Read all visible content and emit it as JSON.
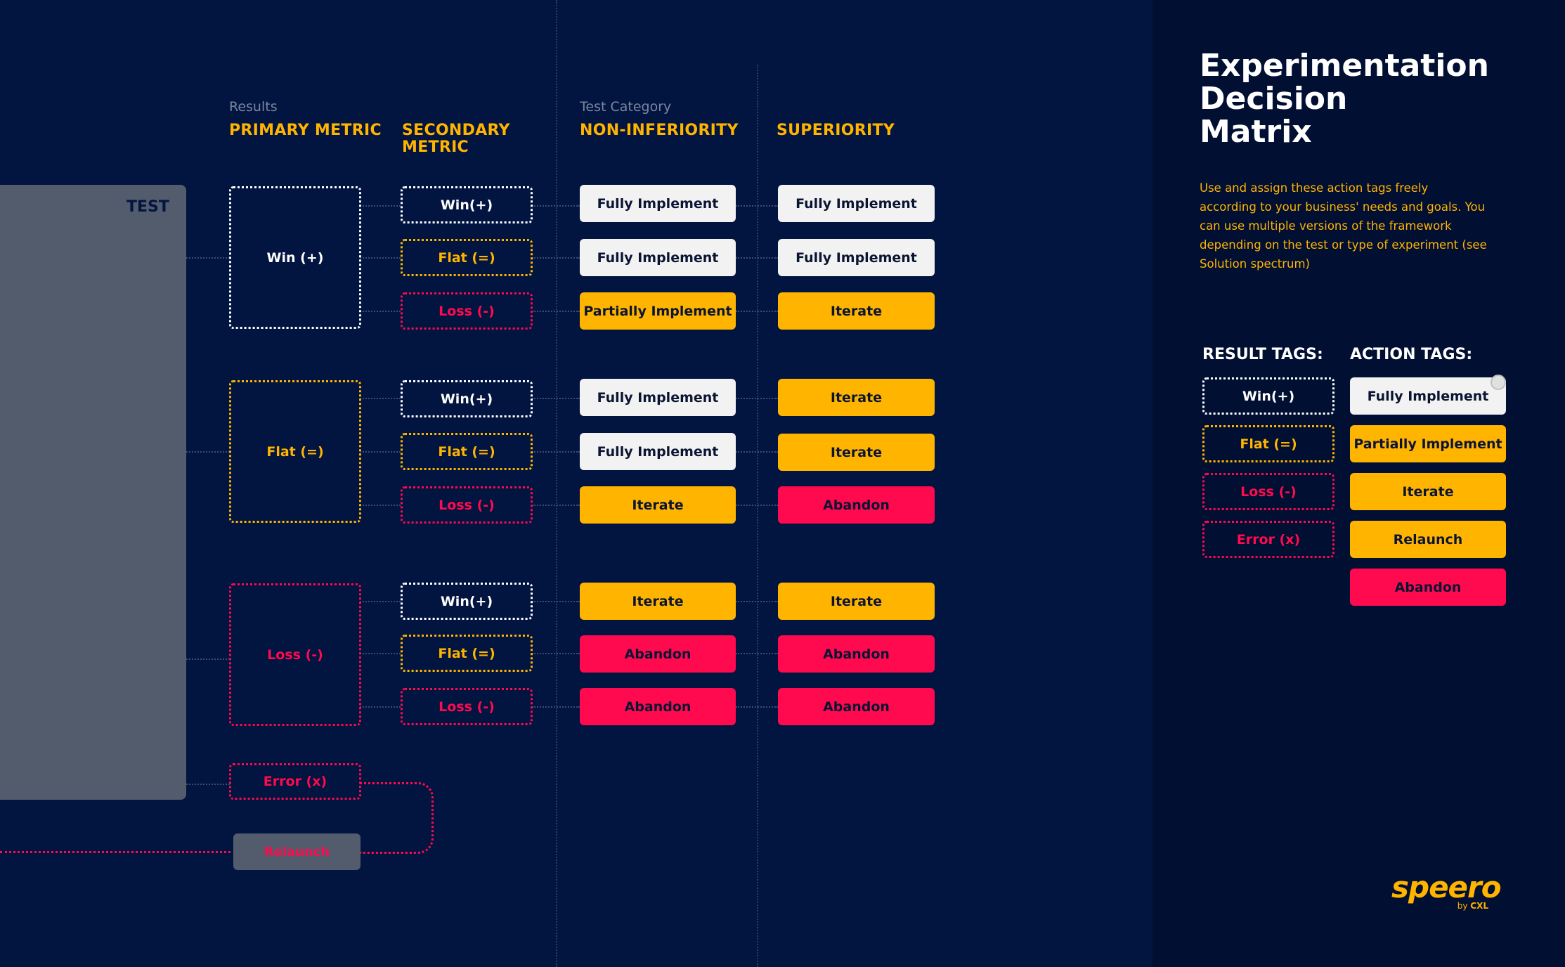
{
  "title": {
    "line1": "Experimentation",
    "line2": "Decision",
    "line3": "Matrix"
  },
  "description": "Use and assign these action tags freely according to your business' needs and goals. You can use multiple versions of the  framework depending on the test or type of experiment (see Solution spectrum)",
  "headers": {
    "results_small": "Results",
    "primary": "PRIMARY METRIC",
    "secondary_line1": "SECONDARY",
    "secondary_line2": "METRIC",
    "test_category_small": "Test Category",
    "non_inferiority": "NON-INFERIORITY",
    "superiority": "SUPERIORITY"
  },
  "test_label": "TEST",
  "primary": {
    "win": "Win (+)",
    "flat": "Flat (=)",
    "loss": "Loss (-)",
    "error": "Error (x)",
    "relaunch": "Relaunch"
  },
  "secondary": {
    "win": "Win(+)",
    "flat": "Flat (=)",
    "loss": "Loss (-)"
  },
  "matrix": {
    "win": {
      "win": {
        "ni": "Fully Implement",
        "sup": "Fully Implement"
      },
      "flat": {
        "ni": "Fully Implement",
        "sup": "Fully Implement"
      },
      "loss": {
        "ni": "Partially Implement",
        "sup": "Iterate"
      }
    },
    "flat": {
      "win": {
        "ni": "Fully Implement",
        "sup": "Iterate"
      },
      "flat": {
        "ni": "Fully Implement",
        "sup": "Iterate"
      },
      "loss": {
        "ni": "Iterate",
        "sup": "Abandon"
      }
    },
    "loss": {
      "win": {
        "ni": "Iterate",
        "sup": "Iterate"
      },
      "flat": {
        "ni": "Abandon",
        "sup": "Abandon"
      },
      "loss": {
        "ni": "Abandon",
        "sup": "Abandon"
      }
    }
  },
  "legend": {
    "result_header": "RESULT TAGS:",
    "action_header": "ACTION TAGS:",
    "result_tags": [
      "Win(+)",
      "Flat (=)",
      "Loss (-)",
      "Error (x)"
    ],
    "action_tags": [
      "Fully Implement",
      "Partially Implement",
      "Iterate",
      "Relaunch",
      "Abandon"
    ]
  },
  "logo": {
    "main": "speero",
    "sub_by": "by",
    "sub_brand": "CXL"
  },
  "colors": {
    "background": "#021440",
    "yellow": "#ffb400",
    "red": "#ff0a4e",
    "white": "#f2f2f2",
    "grey": "#535c6d"
  }
}
